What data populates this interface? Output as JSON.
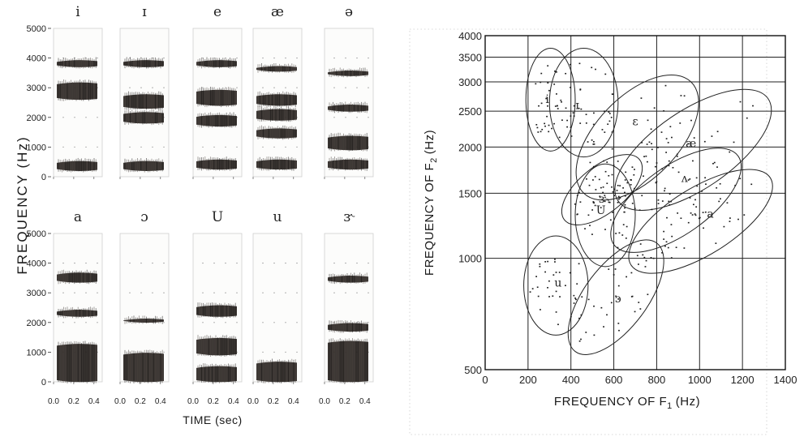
{
  "chart_data": [
    {
      "type": "heatmap",
      "description_kind": "spectrogram-grid",
      "ylabel": "FREQUENCY (Hz)",
      "xlabel": "TIME (sec)",
      "y_ticks": [
        "5000",
        "4000",
        "3000",
        "2000",
        "1000",
        "0"
      ],
      "x_ticks": [
        "0.0",
        "0.2",
        "0.4"
      ],
      "ylim": [
        0,
        5000
      ],
      "xlim": [
        0,
        0.45
      ],
      "panels": [
        {
          "label": "i",
          "bands": [
            [
              200,
              550
            ],
            [
              2600,
              3200
            ],
            [
              3700,
              3950
            ]
          ]
        },
        {
          "label": "ɪ",
          "bands": [
            [
              200,
              550
            ],
            [
              1800,
              2200
            ],
            [
              2300,
              2800
            ],
            [
              3700,
              3950
            ]
          ]
        },
        {
          "label": "e",
          "bands": [
            [
              250,
              600
            ],
            [
              1700,
              2100
            ],
            [
              2400,
              2950
            ],
            [
              3700,
              3950
            ]
          ]
        },
        {
          "label": "æ",
          "bands": [
            [
              250,
              600
            ],
            [
              1300,
              1650
            ],
            [
              1900,
              2300
            ],
            [
              2400,
              2800
            ],
            [
              3550,
              3750
            ]
          ]
        },
        {
          "label": "ə",
          "bands": [
            [
              250,
              600
            ],
            [
              900,
              1400
            ],
            [
              2200,
              2450
            ],
            [
              3400,
              3600
            ]
          ]
        },
        {
          "label": "a",
          "bands": [
            [
              0,
              1300
            ],
            [
              2200,
              2450
            ],
            [
              3350,
              3700
            ]
          ]
        },
        {
          "label": "ɔ",
          "bands": [
            [
              0,
              1000
            ],
            [
              2000,
              2150
            ]
          ]
        },
        {
          "label": "U",
          "bands": [
            [
              0,
              550
            ],
            [
              900,
              1500
            ],
            [
              2200,
              2600
            ]
          ]
        },
        {
          "label": "u",
          "bands": [
            [
              0,
              700
            ]
          ]
        },
        {
          "label": "ɝ",
          "bands": [
            [
              0,
              1400
            ],
            [
              1700,
              2000
            ],
            [
              3350,
              3600
            ]
          ]
        }
      ]
    },
    {
      "type": "scatter",
      "xlabel": "FREQUENCY OF F",
      "xlabel_sub": "1",
      "xlabel_unit": "(Hz)",
      "ylabel": "FREQUENCY OF F",
      "ylabel_sub": "2",
      "ylabel_unit": "(Hz)",
      "x_ticks": [
        "0",
        "200",
        "400",
        "600",
        "800",
        "1000",
        "1200",
        "1400"
      ],
      "y_ticks": [
        "500",
        "1000",
        "1500",
        "2000",
        "2500",
        "3000",
        "3500",
        "4000"
      ],
      "xlim": [
        0,
        1400
      ],
      "ylim": [
        500,
        4000
      ],
      "y_scale": "log",
      "grid": true,
      "vowel_regions": [
        {
          "label": "i",
          "cx": 290,
          "cy": 2700,
          "F1_range": [
            190,
            420
          ],
          "F2_range": [
            1950,
            3700
          ]
        },
        {
          "label": "ɪ",
          "cx": 430,
          "cy": 2600,
          "F1_range": [
            300,
            620
          ],
          "F2_range": [
            1880,
            3700
          ]
        },
        {
          "label": "ɛ",
          "cx": 700,
          "cy": 2350,
          "F1_range": [
            460,
            960
          ],
          "F2_range": [
            1500,
            3000
          ]
        },
        {
          "label": "æ",
          "cx": 960,
          "cy": 2050,
          "F1_range": [
            620,
            1320
          ],
          "F2_range": [
            1430,
            2700
          ]
        },
        {
          "label": "ɝ",
          "cx": 550,
          "cy": 1450,
          "F1_range": [
            370,
            720
          ],
          "F2_range": [
            1270,
            1850
          ]
        },
        {
          "label": "ʌ",
          "cx": 930,
          "cy": 1650,
          "F1_range": [
            600,
            1180
          ],
          "F2_range": [
            1090,
            1890
          ]
        },
        {
          "label": "a",
          "cx": 1050,
          "cy": 1320,
          "F1_range": [
            680,
            1330
          ],
          "F2_range": [
            960,
            1650
          ]
        },
        {
          "label": "U",
          "cx": 540,
          "cy": 1350,
          "F1_range": [
            420,
            700
          ],
          "F2_range": [
            950,
            1800
          ]
        },
        {
          "label": "u",
          "cx": 340,
          "cy": 860,
          "F1_range": [
            180,
            480
          ],
          "F2_range": [
            620,
            1150
          ]
        },
        {
          "label": "ɔ",
          "cx": 620,
          "cy": 780,
          "F1_range": [
            420,
            800
          ],
          "F2_range": [
            560,
            1100
          ]
        }
      ]
    }
  ]
}
